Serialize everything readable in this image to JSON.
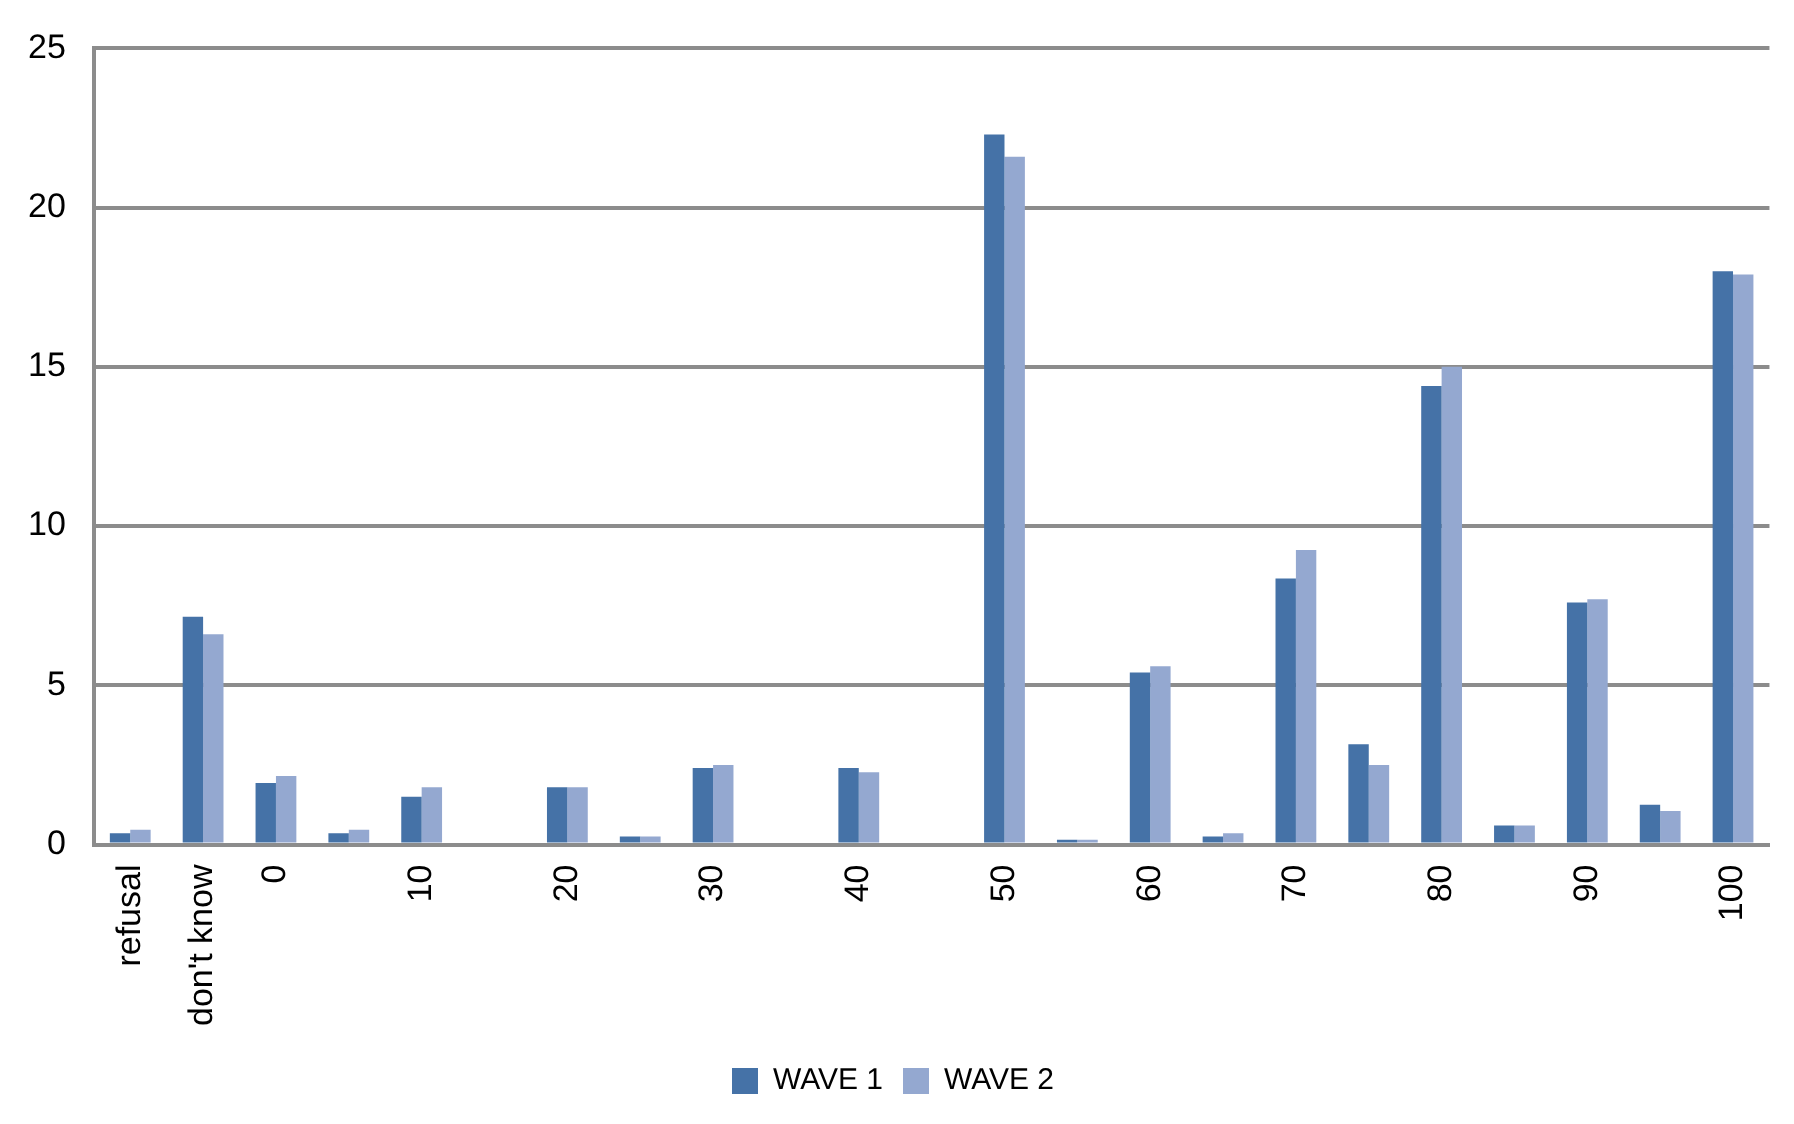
{
  "chart_data": {
    "type": "bar",
    "categories": [
      "refusal",
      "don't know",
      "0",
      null,
      "10",
      null,
      "20",
      null,
      "30",
      null,
      "40",
      null,
      "50",
      null,
      "60",
      null,
      "70",
      null,
      "80",
      null,
      "90",
      null,
      "100"
    ],
    "series": [
      {
        "name": "WAVE 1",
        "color": "#4572a7",
        "values": [
          0.35,
          7.15,
          1.93,
          0.35,
          1.5,
          0,
          1.8,
          0.25,
          2.4,
          0,
          2.4,
          0,
          22.3,
          0.15,
          5.4,
          0.25,
          8.35,
          3.15,
          14.4,
          0.6,
          7.6,
          1.25,
          18.0
        ]
      },
      {
        "name": "WAVE 2",
        "color": "#94a8d0",
        "values": [
          0.46,
          6.6,
          2.15,
          0.46,
          1.8,
          0,
          1.8,
          0.25,
          2.5,
          0,
          2.27,
          0,
          21.6,
          0.15,
          5.6,
          0.35,
          9.25,
          2.5,
          15.0,
          0.6,
          7.7,
          1.05,
          17.9
        ]
      }
    ],
    "ylim": [
      0,
      25
    ],
    "yticks": [
      0,
      5,
      10,
      15,
      20,
      25
    ],
    "grid": "y",
    "legend": "bottom"
  }
}
